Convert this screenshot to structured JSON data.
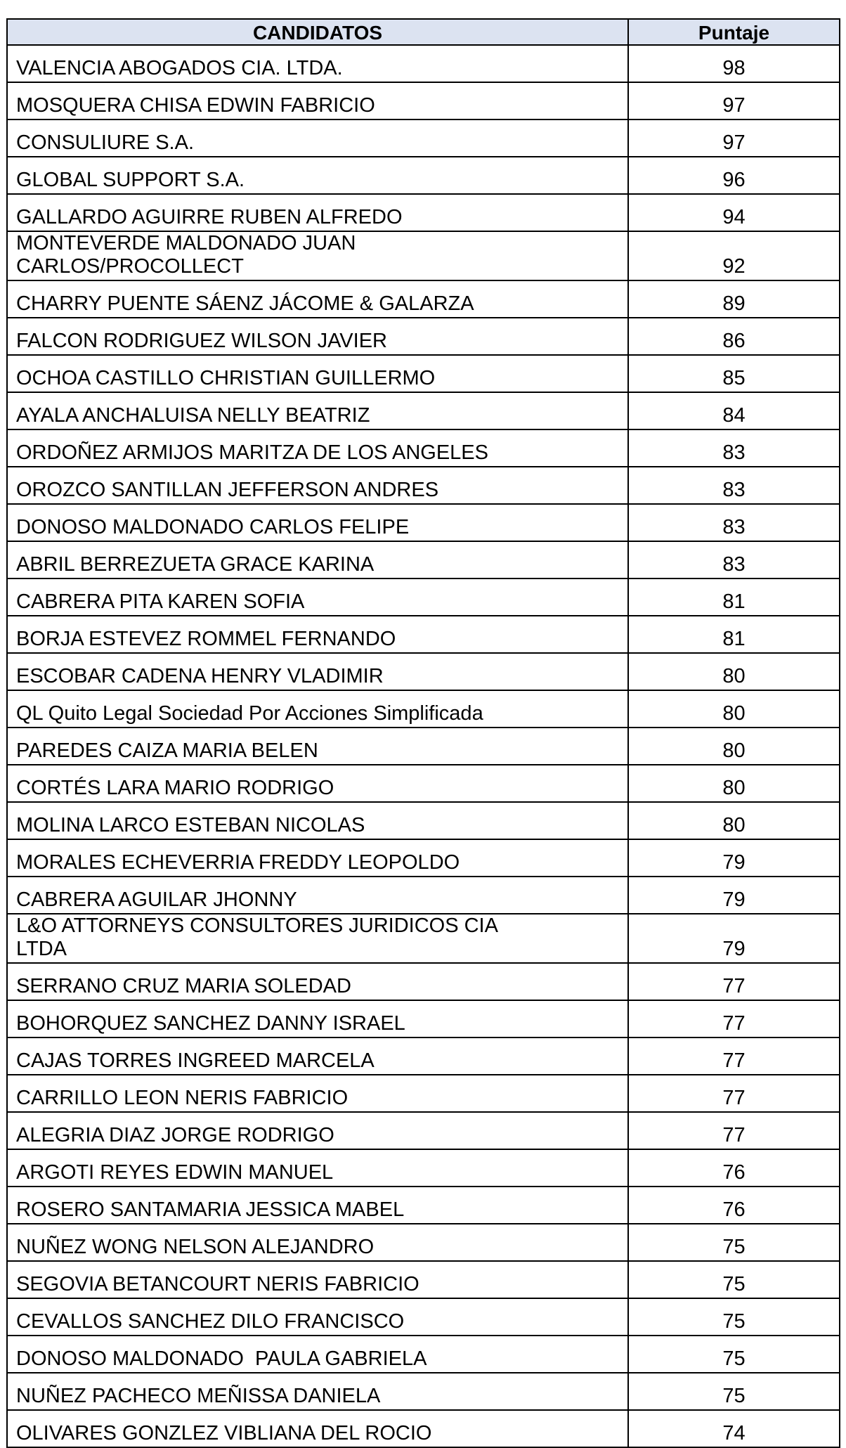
{
  "table": {
    "headers": [
      "CANDIDATOS",
      "Puntaje"
    ],
    "rows": [
      {
        "name": "VALENCIA ABOGADOS CIA. LTDA.",
        "score": "98"
      },
      {
        "name": "MOSQUERA CHISA EDWIN FABRICIO",
        "score": "97"
      },
      {
        "name": "CONSULIURE S.A.",
        "score": "97"
      },
      {
        "name": "GLOBAL SUPPORT S.A.",
        "score": "96"
      },
      {
        "name": "GALLARDO AGUIRRE RUBEN ALFREDO",
        "score": "94"
      },
      {
        "name": "MONTEVERDE MALDONADO JUAN\nCARLOS/PROCOLLECT",
        "score": "92"
      },
      {
        "name": "CHARRY PUENTE SÁENZ JÁCOME & GALARZA",
        "score": "89"
      },
      {
        "name": "FALCON RODRIGUEZ WILSON JAVIER",
        "score": "86"
      },
      {
        "name": "OCHOA CASTILLO CHRISTIAN GUILLERMO",
        "score": "85"
      },
      {
        "name": "AYALA ANCHALUISA NELLY BEATRIZ",
        "score": "84"
      },
      {
        "name": "ORDOÑEZ ARMIJOS MARITZA DE LOS ANGELES",
        "score": "83"
      },
      {
        "name": "OROZCO SANTILLAN JEFFERSON ANDRES",
        "score": "83"
      },
      {
        "name": "DONOSO MALDONADO CARLOS FELIPE",
        "score": "83"
      },
      {
        "name": "ABRIL BERREZUETA GRACE KARINA",
        "score": "83"
      },
      {
        "name": "CABRERA PITA KAREN SOFIA",
        "score": "81"
      },
      {
        "name": "BORJA ESTEVEZ ROMMEL FERNANDO",
        "score": "81"
      },
      {
        "name": "ESCOBAR CADENA HENRY VLADIMIR",
        "score": "80"
      },
      {
        "name": "QL Quito Legal Sociedad Por Acciones Simplificada",
        "score": "80"
      },
      {
        "name": "PAREDES CAIZA MARIA BELEN",
        "score": "80"
      },
      {
        "name": "CORTÉS LARA MARIO RODRIGO",
        "score": "80"
      },
      {
        "name": "MOLINA LARCO ESTEBAN NICOLAS",
        "score": "80"
      },
      {
        "name": "MORALES ECHEVERRIA FREDDY LEOPOLDO",
        "score": "79"
      },
      {
        "name": "CABRERA AGUILAR JHONNY",
        "score": "79"
      },
      {
        "name": "L&O ATTORNEYS CONSULTORES JURIDICOS CIA\nLTDA",
        "score": "79"
      },
      {
        "name": "SERRANO CRUZ MARIA SOLEDAD",
        "score": "77"
      },
      {
        "name": "BOHORQUEZ SANCHEZ DANNY ISRAEL",
        "score": "77"
      },
      {
        "name": "CAJAS TORRES INGREED MARCELA",
        "score": "77"
      },
      {
        "name": "CARRILLO LEON NERIS FABRICIO",
        "score": "77"
      },
      {
        "name": "ALEGRIA DIAZ JORGE RODRIGO",
        "score": "77"
      },
      {
        "name": "ARGOTI REYES EDWIN MANUEL",
        "score": "76"
      },
      {
        "name": "ROSERO SANTAMARIA JESSICA MABEL",
        "score": "76"
      },
      {
        "name": "NUÑEZ WONG NELSON ALEJANDRO",
        "score": "75"
      },
      {
        "name": "SEGOVIA BETANCOURT NERIS FABRICIO",
        "score": "75"
      },
      {
        "name": "CEVALLOS SANCHEZ DILO FRANCISCO",
        "score": "75"
      },
      {
        "name": "DONOSO MALDONADO  PAULA GABRIELA",
        "score": "75"
      },
      {
        "name": "NUÑEZ PACHECO MEÑISSA DANIELA",
        "score": "75"
      },
      {
        "name": "OLIVARES GONZLEZ VIBLIANA DEL ROCIO",
        "score": "74"
      }
    ]
  },
  "colors": {
    "header_bg": "#dce3f1",
    "border": "#000000"
  }
}
